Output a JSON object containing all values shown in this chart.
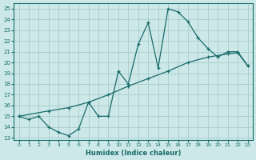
{
  "xlabel": "Humidex (Indice chaleur)",
  "background_color": "#cce8e8",
  "grid_color": "#aacccc",
  "line_color": "#1a6b6b",
  "xlim": [
    -0.5,
    23.5
  ],
  "ylim": [
    12.8,
    25.5
  ],
  "yticks": [
    13,
    14,
    15,
    16,
    17,
    18,
    19,
    20,
    21,
    22,
    23,
    24,
    25
  ],
  "xticks": [
    0,
    1,
    2,
    3,
    4,
    5,
    6,
    7,
    8,
    9,
    10,
    11,
    12,
    13,
    14,
    15,
    16,
    17,
    18,
    19,
    20,
    21,
    22,
    23
  ],
  "line1_x": [
    0,
    1,
    2,
    3,
    4,
    5,
    6,
    7,
    8,
    9,
    10,
    11,
    12,
    13,
    14,
    15,
    16,
    17,
    18,
    19,
    20,
    21,
    22,
    23
  ],
  "line1_y": [
    15.0,
    14.7,
    15.0,
    14.0,
    13.5,
    13.2,
    13.8,
    16.3,
    15.0,
    15.0,
    19.2,
    18.0,
    21.7,
    23.7,
    19.5,
    25.0,
    24.7,
    23.8,
    22.3,
    21.3,
    20.5,
    21.0,
    21.0,
    19.7
  ],
  "line2_x": [
    0,
    3,
    5,
    7,
    9,
    11,
    13,
    15,
    17,
    19,
    21,
    22,
    23
  ],
  "line2_y": [
    15.0,
    15.5,
    15.8,
    16.3,
    17.0,
    17.8,
    18.5,
    19.2,
    20.0,
    20.5,
    20.8,
    20.9,
    19.7
  ],
  "marker": "+"
}
